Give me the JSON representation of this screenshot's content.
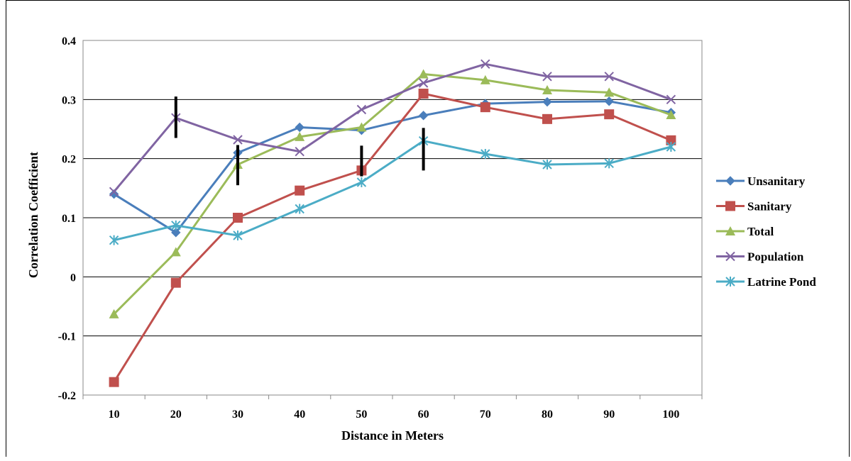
{
  "chart_data": {
    "type": "line",
    "title": "",
    "xlabel": "Distance in Meters",
    "ylabel": "Correlation Coefficient",
    "categories": [
      "10",
      "20",
      "30",
      "40",
      "50",
      "60",
      "70",
      "80",
      "90",
      "100"
    ],
    "ylim": [
      -0.2,
      0.4
    ],
    "yticks": [
      -0.2,
      -0.1,
      0,
      0.1,
      0.2,
      0.3,
      0.4
    ],
    "ytick_labels": [
      "-0.2",
      "-0.1",
      "0",
      "0.1",
      "0.2",
      "0.3",
      "0.4"
    ],
    "grid": "horizontal",
    "legend_position": "right",
    "series": [
      {
        "name": "Unsanitary",
        "color": "#4a7ebb",
        "marker": "diamond",
        "values": [
          0.14,
          0.075,
          0.21,
          0.253,
          0.248,
          0.273,
          0.293,
          0.296,
          0.297,
          0.278
        ]
      },
      {
        "name": "Sanitary",
        "color": "#c0504d",
        "marker": "square",
        "values": [
          -0.178,
          -0.01,
          0.1,
          0.146,
          0.18,
          0.31,
          0.287,
          0.267,
          0.275,
          0.231
        ]
      },
      {
        "name": "Total",
        "color": "#9bbb59",
        "marker": "triangle",
        "values": [
          -0.063,
          0.042,
          0.19,
          0.237,
          0.253,
          0.343,
          0.333,
          0.316,
          0.312,
          0.274
        ]
      },
      {
        "name": "Population",
        "color": "#8064a2",
        "marker": "x",
        "values": [
          0.144,
          0.269,
          0.232,
          0.212,
          0.283,
          0.328,
          0.36,
          0.339,
          0.339,
          0.3
        ]
      },
      {
        "name": "Latrine Pond",
        "color": "#4bacc6",
        "marker": "star",
        "values": [
          0.062,
          0.087,
          0.07,
          0.115,
          0.16,
          0.23,
          0.208,
          0.19,
          0.192,
          0.22
        ]
      }
    ],
    "error_bars": [
      {
        "x": "20",
        "low": 0.235,
        "high": 0.305
      },
      {
        "x": "30",
        "low": 0.155,
        "high": 0.223
      },
      {
        "x": "50",
        "low": 0.17,
        "high": 0.222
      },
      {
        "x": "60",
        "low": 0.18,
        "high": 0.252
      }
    ]
  }
}
